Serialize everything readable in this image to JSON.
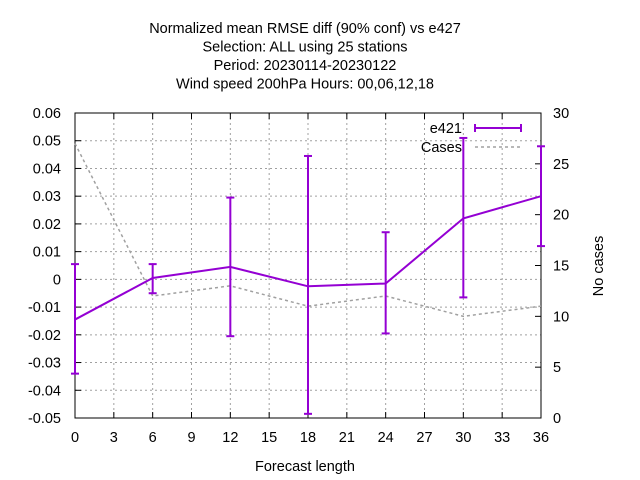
{
  "chart_data": {
    "type": "line",
    "title": [
      "Normalized mean RMSE diff (90% conf) vs e427",
      "Selection: ALL using     25 stations",
      "Period: 20230114-20230122",
      "Wind speed 200hPa   Hours:  00,06,12,18"
    ],
    "xlabel": "Forecast length",
    "ylabel": "",
    "y2label": "No cases",
    "xlim": [
      0,
      36
    ],
    "ylim": [
      -0.05,
      0.06
    ],
    "y2lim": [
      0,
      30
    ],
    "xticks": [
      "0",
      "3",
      "6",
      "9",
      "12",
      "15",
      "18",
      "21",
      "24",
      "27",
      "30",
      "33",
      "36"
    ],
    "yticks": [
      "-0.05",
      "-0.04",
      "-0.03",
      "-0.02",
      "-0.01",
      "0",
      "0.01",
      "0.02",
      "0.03",
      "0.04",
      "0.05",
      "0.06"
    ],
    "y2ticks": [
      "0",
      "5",
      "10",
      "15",
      "20",
      "25",
      "30"
    ],
    "grid": true,
    "legend_position": "top-right",
    "series": [
      {
        "name": "e421",
        "axis": "y",
        "color": "#9400d3",
        "x": [
          0,
          6,
          12,
          18,
          24,
          30,
          36
        ],
        "values": [
          -0.0145,
          0.0005,
          0.0045,
          -0.0025,
          -0.0015,
          0.022,
          0.03
        ],
        "err_low": [
          -0.034,
          -0.005,
          -0.0205,
          -0.0485,
          -0.0195,
          -0.0065,
          0.012
        ],
        "err_high": [
          0.0055,
          0.0055,
          0.0295,
          0.0445,
          0.017,
          0.051,
          0.048
        ]
      },
      {
        "name": "Cases",
        "axis": "y2",
        "color": "#a0a0a0",
        "x": [
          0,
          6,
          12,
          18,
          24,
          30,
          36
        ],
        "values": [
          27,
          12,
          13,
          11,
          12,
          10,
          11
        ]
      }
    ]
  }
}
